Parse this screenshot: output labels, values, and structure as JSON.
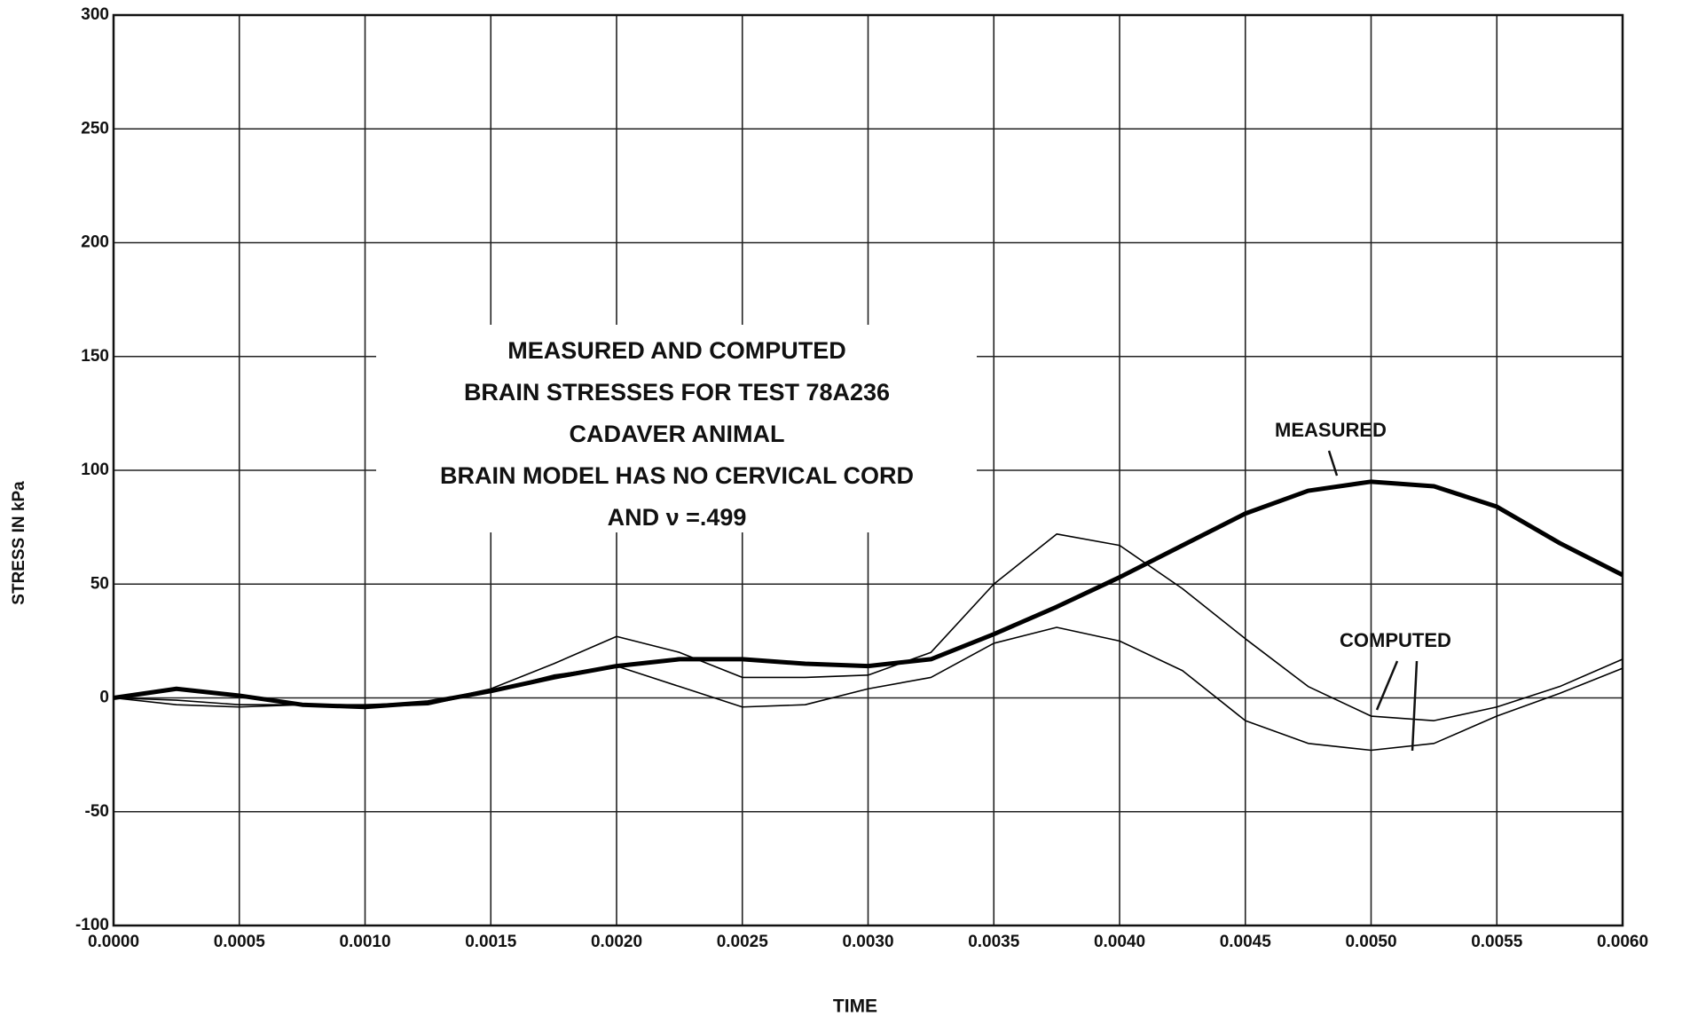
{
  "chart_data": {
    "type": "line",
    "title": [
      "MEASURED AND COMPUTED",
      "BRAIN STRESSES FOR TEST 78A236",
      "CADAVER ANIMAL",
      "BRAIN MODEL HAS NO CERVICAL CORD",
      "AND ν =.499"
    ],
    "xlabel": "TIME",
    "ylabel": "STRESS IN kPa",
    "annotations": [
      "MEASURED",
      "COMPUTED"
    ],
    "x": [
      0,
      0.00025,
      0.0005,
      0.00075,
      0.001,
      0.00125,
      0.0015,
      0.00175,
      0.002,
      0.00225,
      0.0025,
      0.00275,
      0.003,
      0.00325,
      0.0035,
      0.00375,
      0.004,
      0.00425,
      0.0045,
      0.00475,
      0.005,
      0.00525,
      0.0055,
      0.00575,
      0.006
    ],
    "series": [
      {
        "name": "MEASURED",
        "color": "#000000",
        "values": [
          0,
          4,
          1,
          -3,
          -4,
          -2,
          3,
          9,
          14,
          17,
          17,
          15,
          14,
          17,
          28,
          40,
          53,
          67,
          81,
          91,
          95,
          93,
          84,
          68,
          54
        ]
      },
      {
        "color": "#000000",
        "values": [
          0,
          -1,
          -3,
          -3,
          -3,
          -2,
          4,
          15,
          27,
          20,
          9,
          9,
          10,
          20,
          50,
          72,
          67,
          48,
          26,
          5,
          -8,
          -10,
          -4,
          5,
          17
        ]
      },
      {
        "color": "#000000",
        "values": [
          0,
          -3,
          -4,
          -3,
          -4,
          -3,
          3,
          10,
          14,
          5,
          -4,
          -3,
          4,
          9,
          24,
          31,
          25,
          12,
          -10,
          -20,
          -23,
          -20,
          -8,
          2,
          13
        ]
      }
    ],
    "xlim": [
      0,
      0.006
    ],
    "xticks": [
      {
        "value": 0,
        "label": "0.0000"
      },
      {
        "value": 0.0005,
        "label": "0.0005"
      },
      {
        "value": 0.001,
        "label": "0.0010"
      },
      {
        "value": 0.0015,
        "label": "0.0015"
      },
      {
        "value": 0.002,
        "label": "0.0020"
      },
      {
        "value": 0.0025,
        "label": "0.0025"
      },
      {
        "value": 0.003,
        "label": "0.0030"
      },
      {
        "value": 0.0035,
        "label": "0.0035"
      },
      {
        "value": 0.004,
        "label": "0.0040"
      },
      {
        "value": 0.0045,
        "label": "0.0045"
      },
      {
        "value": 0.005,
        "label": "0.0050"
      },
      {
        "value": 0.0055,
        "label": "0.0055"
      },
      {
        "value": 0.006,
        "label": "0.0060"
      }
    ],
    "ylim": [
      -100,
      300
    ],
    "yticks": [
      -100,
      -50,
      0,
      50,
      100,
      150,
      200,
      250,
      300
    ],
    "grid": true
  }
}
